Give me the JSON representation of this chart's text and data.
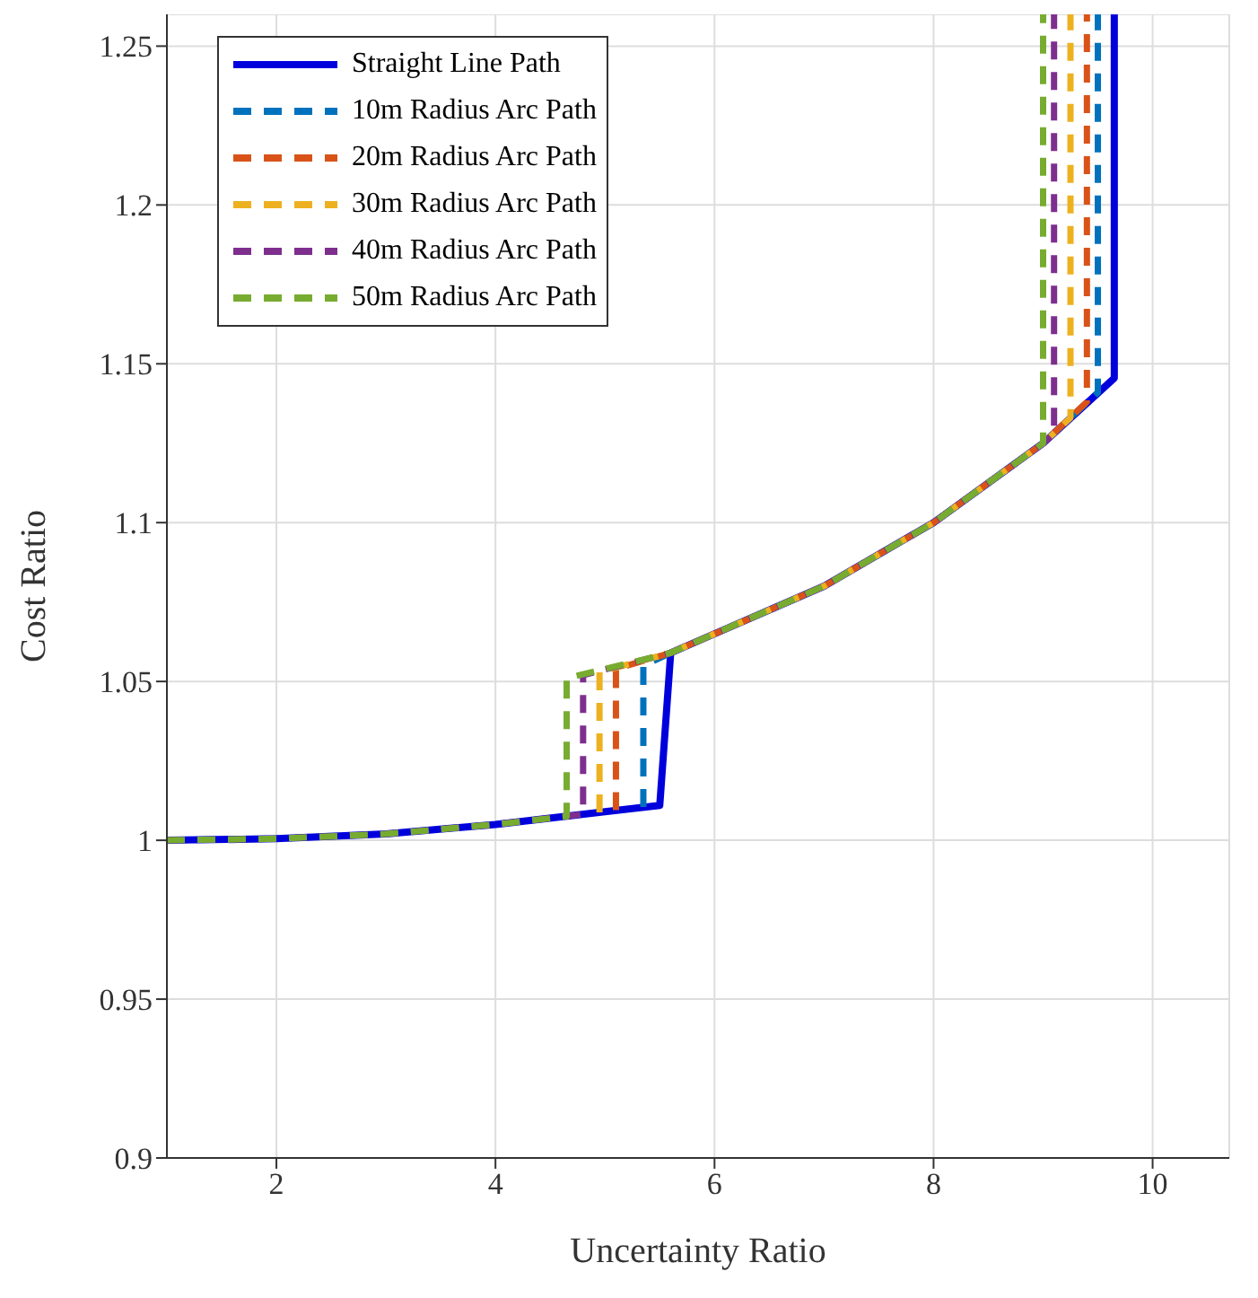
{
  "chart_data": {
    "type": "line",
    "xlabel": "Uncertainty Ratio",
    "ylabel": "Cost Ratio",
    "xlim": [
      1,
      10.7
    ],
    "ylim": [
      0.9,
      1.26
    ],
    "xticks": [
      2,
      4,
      6,
      8,
      10
    ],
    "yticks": [
      0.9,
      0.95,
      1,
      1.05,
      1.1,
      1.15,
      1.2,
      1.25
    ],
    "grid": true,
    "legend": "top left",
    "marker": "none",
    "series": [
      {
        "name": "Straight Line Path",
        "color": "#0000dd",
        "line_style": "solid",
        "x": [
          1,
          2,
          3,
          4,
          5,
          5.5,
          5.6,
          7,
          8,
          9,
          9.65,
          9.65
        ],
        "values": [
          1,
          1.0005,
          1.002,
          1.005,
          1.009,
          1.011,
          1.059,
          1.08,
          1.1,
          1.125,
          1.1455,
          1.26
        ]
      },
      {
        "name": "10m Radius Arc Path",
        "color": "#0072bd",
        "line_style": "dashed",
        "x": [
          5.35,
          5.35,
          5.6,
          7,
          8,
          9,
          9.5,
          9.5
        ],
        "values": [
          1.0105,
          1.055,
          1.059,
          1.08,
          1.1,
          1.125,
          1.141,
          1.26
        ]
      },
      {
        "name": "20m Radius Arc Path",
        "color": "#d95319",
        "line_style": "dashed",
        "x": [
          5.1,
          5.1,
          5.6,
          7,
          8,
          9,
          9.4,
          9.4
        ],
        "values": [
          1.0095,
          1.054,
          1.059,
          1.08,
          1.1,
          1.125,
          1.138,
          1.26
        ]
      },
      {
        "name": "30m Radius Arc Path",
        "color": "#edb120",
        "line_style": "dashed",
        "x": [
          4.95,
          4.95,
          5.6,
          7,
          8,
          9,
          9.25,
          9.25
        ],
        "values": [
          1.0088,
          1.053,
          1.059,
          1.08,
          1.1,
          1.125,
          1.133,
          1.26
        ]
      },
      {
        "name": "40m Radius Arc Path",
        "color": "#7e2f8e",
        "line_style": "dashed",
        "x": [
          1,
          2,
          3,
          4,
          4.8,
          4.8,
          5.6,
          7,
          8,
          9,
          9.1,
          9.1
        ],
        "values": [
          1,
          1.0005,
          1.002,
          1.005,
          1.0082,
          1.052,
          1.059,
          1.08,
          1.1,
          1.125,
          1.128,
          1.26
        ]
      },
      {
        "name": "50m Radius Arc Path",
        "color": "#77ac30",
        "line_style": "dashed",
        "x": [
          1,
          2,
          3,
          4,
          4.65,
          4.65,
          5.6,
          7,
          8,
          9,
          9,
          9
        ],
        "values": [
          1,
          1.0005,
          1.002,
          1.005,
          1.0075,
          1.051,
          1.059,
          1.08,
          1.1,
          1.125,
          1.125,
          1.26
        ]
      }
    ]
  }
}
